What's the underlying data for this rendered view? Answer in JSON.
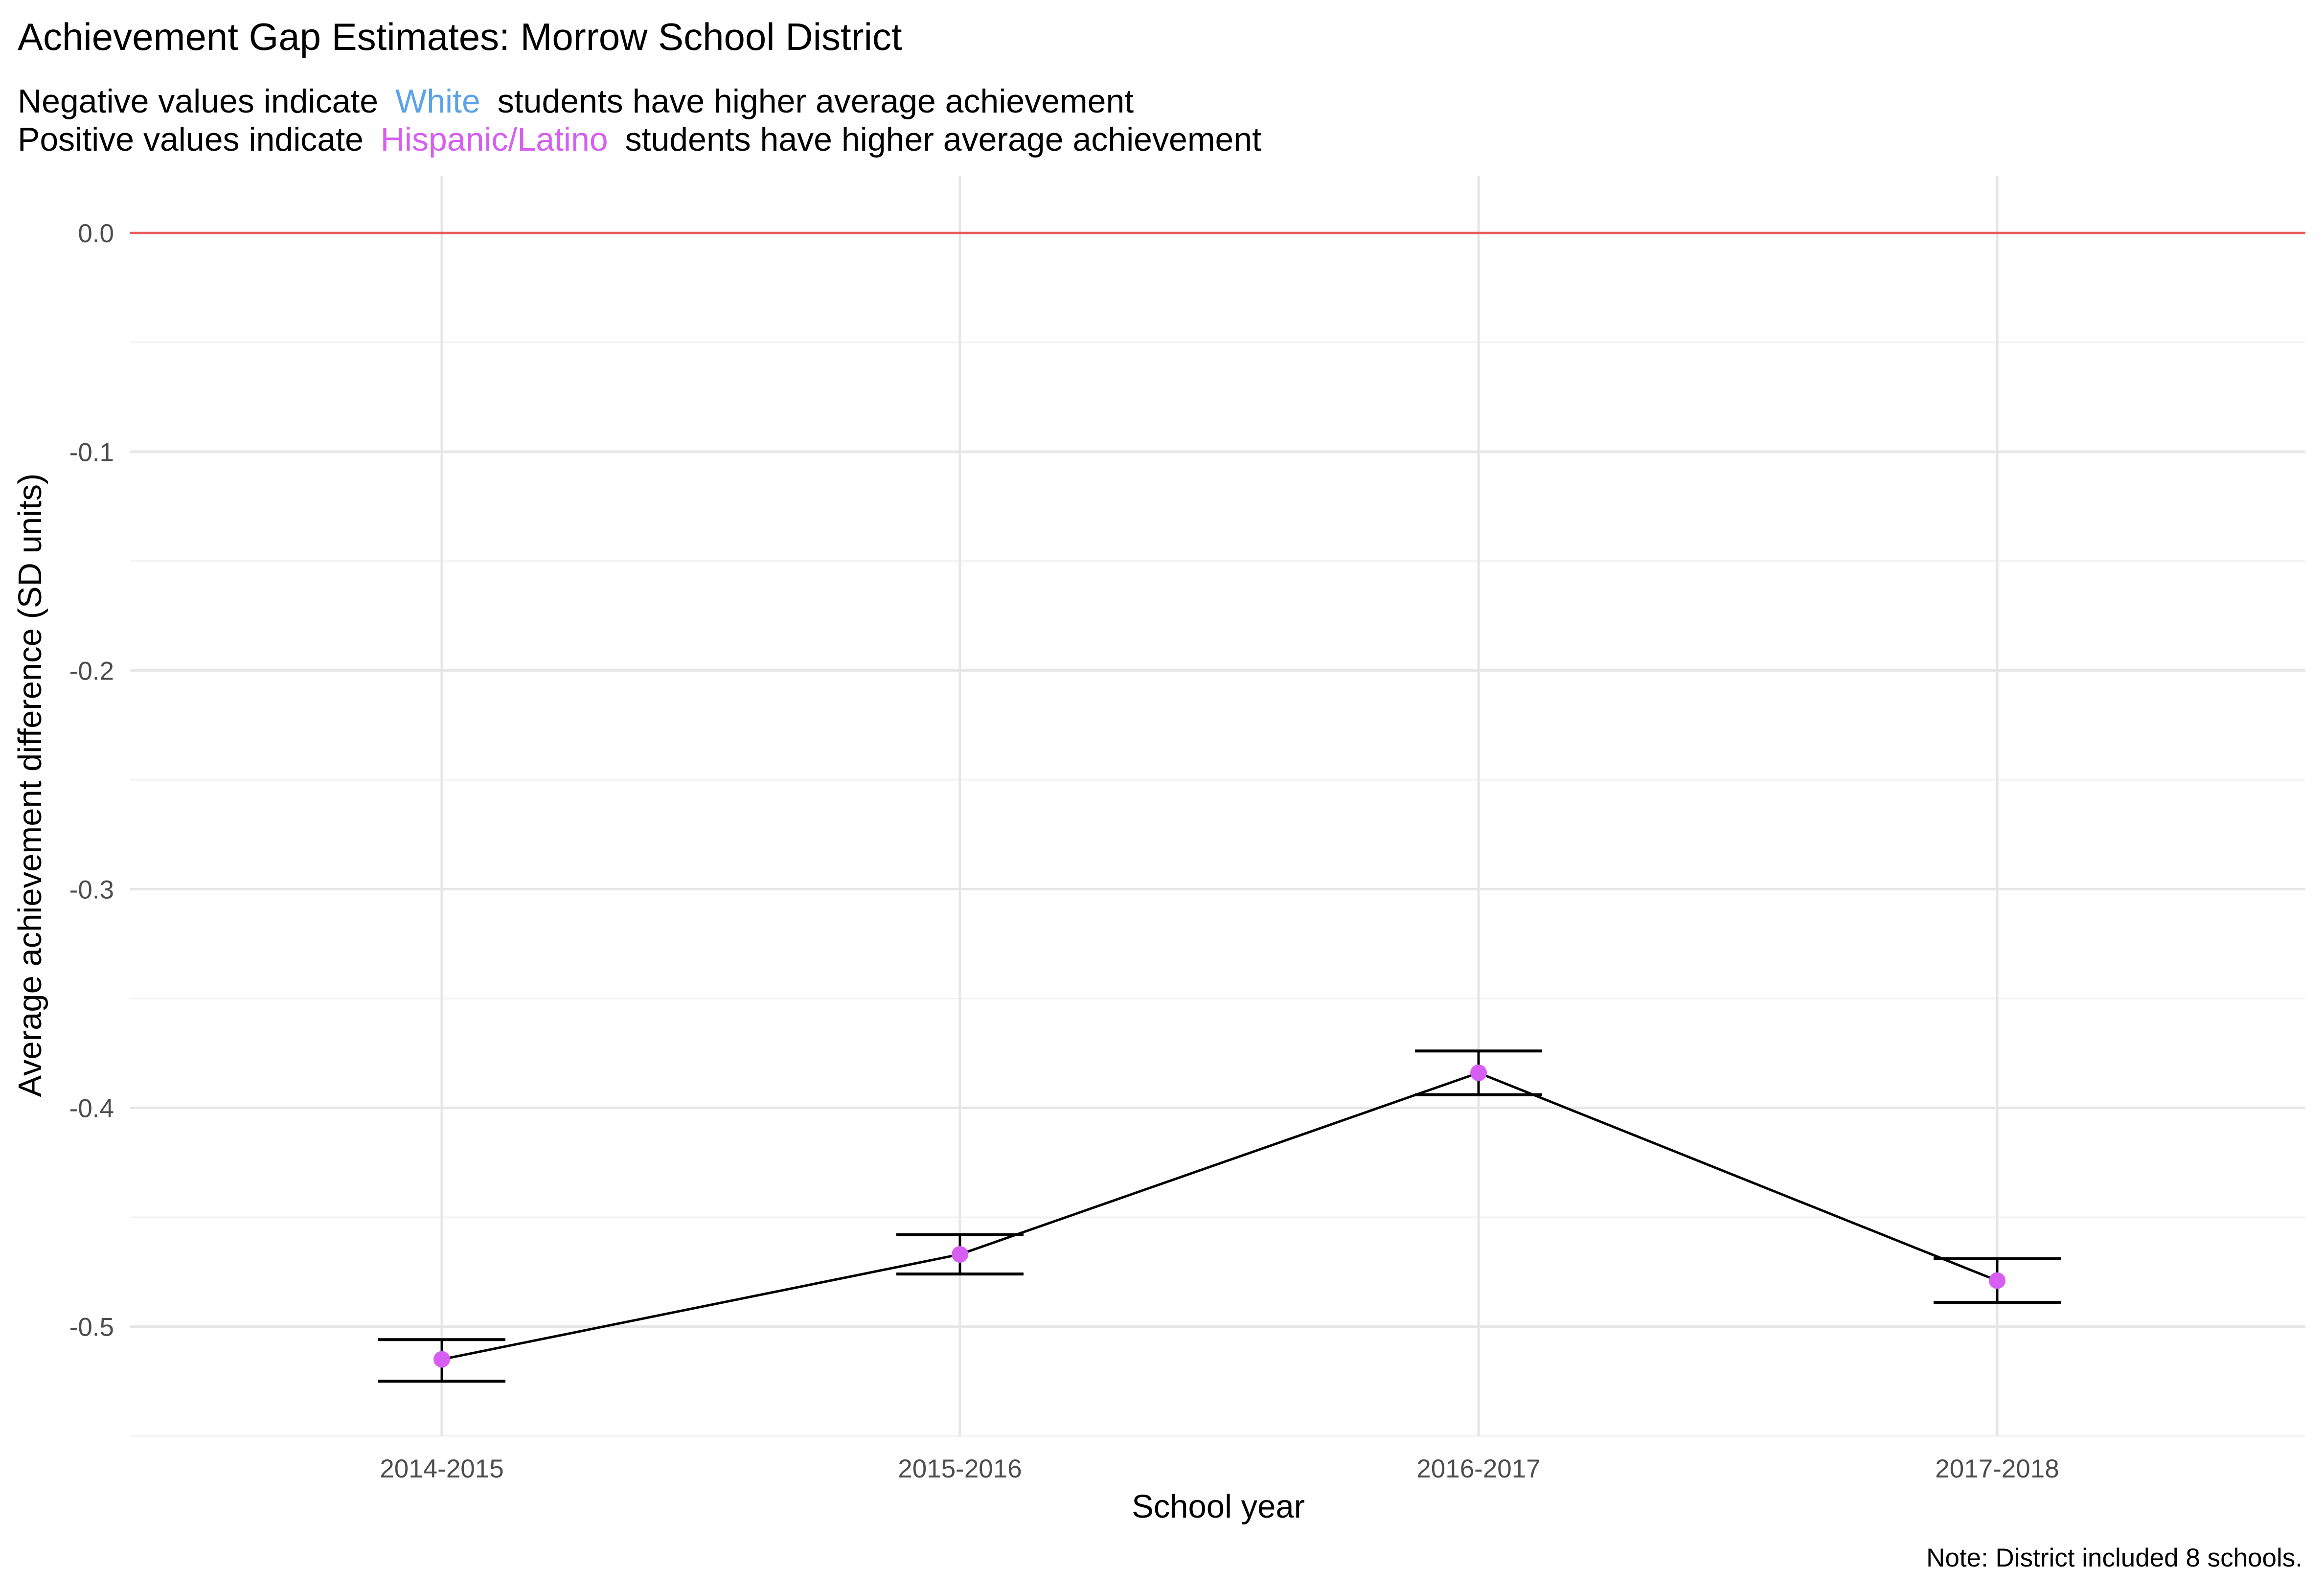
{
  "colors": {
    "white_group": "#5ba3e8",
    "hispanic_group": "#d65ef2",
    "zero_line": "#e85a5a",
    "grid_major": "#e6e6e6",
    "grid_minor": "#f2f2f2",
    "line": "#000000",
    "point": "#d65ef2"
  },
  "chart_data": {
    "type": "line",
    "title": "Achievement Gap Estimates: Morrow School District",
    "subtitle": {
      "line1": {
        "before": "Negative values indicate",
        "highlight": "White",
        "after": "students have higher average achievement"
      },
      "line2": {
        "before": "Positive values indicate",
        "highlight": "Hispanic/Latino",
        "after": "students have higher average achievement"
      }
    },
    "xlabel": "School year",
    "ylabel": "Average achievement difference (SD units)",
    "caption": "Note: District included 8 schools.",
    "categories": [
      "2014-2015",
      "2015-2016",
      "2016-2017",
      "2017-2018"
    ],
    "series": [
      {
        "values": [
          -0.515,
          -0.467,
          -0.384,
          -0.479
        ],
        "error_low": [
          -0.525,
          -0.476,
          -0.394,
          -0.489
        ],
        "error_high": [
          -0.506,
          -0.458,
          -0.374,
          -0.469
        ]
      }
    ],
    "reference_line": 0,
    "ylim": [
      -0.55,
      0.026
    ],
    "yticks": [
      0.0,
      -0.1,
      -0.2,
      -0.3,
      -0.4,
      -0.5
    ],
    "ytick_labels": [
      "0.0",
      "-0.1",
      "-0.2",
      "-0.3",
      "-0.4",
      "-0.5"
    ],
    "grid": true,
    "legend": "none"
  }
}
